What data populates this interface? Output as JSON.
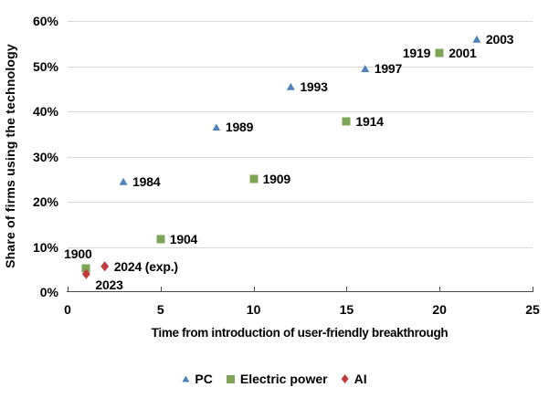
{
  "chart_data": {
    "type": "scatter",
    "title": "",
    "xlabel": "Time from introduction of user-friendly breakthrough",
    "ylabel": "Share of firms using the technology",
    "xlim": [
      0,
      25
    ],
    "ylim": [
      0,
      60
    ],
    "grid": "horizontal",
    "grid_color": "#d9d9d9",
    "axis_color": "#4a4a4a",
    "legend_position": "bottom",
    "x_ticks": [
      {
        "value": 0,
        "label": "0"
      },
      {
        "value": 5,
        "label": "5"
      },
      {
        "value": 10,
        "label": "10"
      },
      {
        "value": 15,
        "label": "15"
      },
      {
        "value": 20,
        "label": "20"
      },
      {
        "value": 25,
        "label": "25"
      }
    ],
    "y_ticks": [
      {
        "value": 0,
        "label": "0%"
      },
      {
        "value": 10,
        "label": "10%"
      },
      {
        "value": 20,
        "label": "20%"
      },
      {
        "value": 30,
        "label": "30%"
      },
      {
        "value": 40,
        "label": "40%"
      },
      {
        "value": 50,
        "label": "50%"
      },
      {
        "value": 60,
        "label": "60%"
      }
    ],
    "series": [
      {
        "name": "PC",
        "marker": "triangle",
        "color": "#4f81bd",
        "points": [
          {
            "x": 3,
            "y": 24.5,
            "label": "1984",
            "label_pos": "right"
          },
          {
            "x": 8,
            "y": 36.5,
            "label": "1989",
            "label_pos": "right"
          },
          {
            "x": 12,
            "y": 45.5,
            "label": "1993",
            "label_pos": "right"
          },
          {
            "x": 16,
            "y": 49.5,
            "label": "1997",
            "label_pos": "right"
          },
          {
            "x": 20,
            "y": 53,
            "label": "2001",
            "label_pos": "right"
          },
          {
            "x": 22,
            "y": 56,
            "label": "2003",
            "label_pos": "right"
          }
        ]
      },
      {
        "name": "Electric power",
        "marker": "square",
        "color": "#7ea556",
        "points": [
          {
            "x": 1,
            "y": 5.2,
            "label": "1900",
            "label_pos": "above-left"
          },
          {
            "x": 5,
            "y": 11.7,
            "label": "1904",
            "label_pos": "right"
          },
          {
            "x": 10,
            "y": 25,
            "label": "1909",
            "label_pos": "right"
          },
          {
            "x": 15,
            "y": 37.8,
            "label": "1914",
            "label_pos": "left-of-right-label"
          },
          {
            "x": 20,
            "y": 53,
            "label": "1919",
            "label_pos": "left"
          }
        ]
      },
      {
        "name": "AI",
        "marker": "diamond",
        "color": "#c13b3c",
        "points": [
          {
            "x": 1,
            "y": 4,
            "label": "2023",
            "label_pos": "below-right"
          },
          {
            "x": 2,
            "y": 5.7,
            "label": "2024 (exp.)",
            "label_pos": "right"
          }
        ]
      }
    ]
  }
}
